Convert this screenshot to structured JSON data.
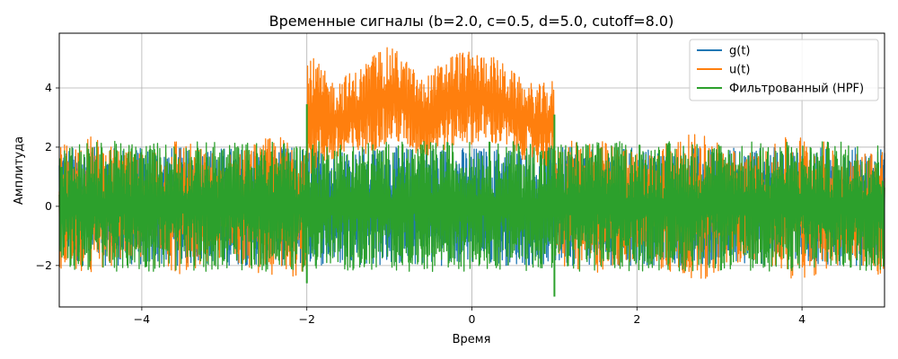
{
  "chart_data": {
    "type": "line",
    "title": "Временные сигналы (b=2.0, c=0.5, d=5.0, cutoff=8.0)",
    "xlabel": "Время",
    "ylabel": "Амплитуда",
    "xlim": [
      -5,
      5
    ],
    "ylim": [
      -3.4,
      5.85
    ],
    "xticks": [
      -4,
      -2,
      0,
      2,
      4
    ],
    "yticks": [
      -2,
      0,
      2,
      4
    ],
    "xtick_labels": [
      "−4",
      "−2",
      "0",
      "2",
      "4"
    ],
    "ytick_labels": [
      "−2",
      "0",
      "2",
      "4"
    ],
    "grid": true,
    "legend_position": "top-right",
    "series": [
      {
        "name": "g(t)",
        "color": "#1f77b4",
        "description_note": "",
        "envelope": {
          "x": [
            -5,
            5
          ],
          "upper": [
            2.0,
            2.0
          ],
          "lower": [
            -2.0,
            -2.0
          ]
        }
      },
      {
        "name": "u(t)",
        "color": "#ff7f0e",
        "envelope": {
          "x": [
            -5.0,
            -4.6,
            -4.3,
            -4.0,
            -3.6,
            -3.3,
            -3.0,
            -2.7,
            -2.4,
            -2.0,
            -1.999,
            -1.7,
            -1.4,
            -1.1,
            -0.9,
            -0.6,
            -0.4,
            -0.2,
            0.0,
            0.2,
            0.4,
            0.6,
            0.8,
            0.999,
            1.0,
            1.4,
            1.8,
            2.1,
            2.4,
            2.8,
            3.2,
            3.5,
            3.9,
            4.2,
            4.6,
            5.0
          ],
          "upper": [
            2.1,
            2.4,
            1.9,
            1.8,
            2.4,
            2.0,
            1.7,
            2.1,
            2.4,
            2.3,
            5.3,
            4.3,
            4.6,
            5.4,
            5.3,
            4.3,
            4.8,
            5.3,
            5.2,
            5.2,
            4.8,
            4.3,
            4.1,
            4.3,
            2.0,
            2.4,
            2.0,
            1.8,
            2.3,
            2.5,
            1.9,
            1.8,
            2.5,
            2.3,
            1.8,
            2.1
          ],
          "lower": [
            -2.1,
            -2.4,
            -1.9,
            -1.8,
            -2.4,
            -2.1,
            -1.7,
            -2.1,
            -2.5,
            -2.3,
            1.0,
            1.4,
            1.6,
            2.0,
            2.1,
            1.6,
            1.8,
            2.0,
            2.1,
            2.1,
            1.9,
            1.6,
            1.4,
            1.2,
            -2.0,
            -2.4,
            -2.0,
            -1.8,
            -2.3,
            -2.5,
            -1.9,
            -1.8,
            -2.5,
            -2.3,
            -1.8,
            -2.5
          ]
        }
      },
      {
        "name": "Фильтрованный (HPF)",
        "color": "#2ca02c",
        "envelope": {
          "x": [
            -5,
            5
          ],
          "upper": [
            2.2,
            2.2
          ],
          "lower": [
            -2.2,
            -2.2
          ]
        },
        "spikes": [
          {
            "x": -2.0,
            "min": -2.6,
            "max": 3.45
          },
          {
            "x": 1.0,
            "min": -3.05,
            "max": 3.1
          }
        ]
      }
    ]
  }
}
